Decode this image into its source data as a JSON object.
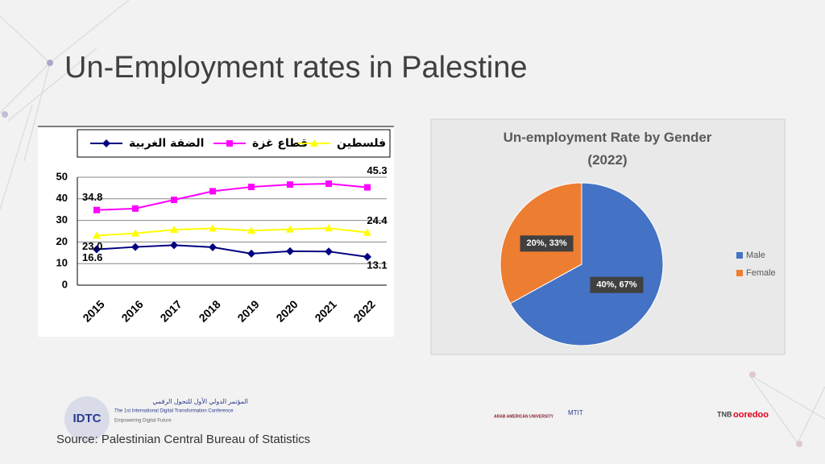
{
  "slide": {
    "title": "Un-Employment rates in Palestine",
    "source": "Source: Palestinian Central Bureau of Statistics"
  },
  "footer": {
    "logo": "IDTC",
    "conference_ar": "المؤتمر الدولي الأول للتحول الرقمي",
    "conference_en": "The 1st International Digital Transformation Conference",
    "tagline": "Empowering Digital Future",
    "sponsors": [
      "ARAB AMERICAN UNIVERSITY",
      "MTIT",
      "TNB",
      "ooredoo"
    ]
  },
  "chart_data": [
    {
      "type": "line",
      "categories": [
        "2015",
        "2016",
        "2017",
        "2018",
        "2019",
        "2020",
        "2021",
        "2022"
      ],
      "series": [
        {
          "name": "الضفة الغربية",
          "color": "#000080",
          "marker": "diamond",
          "values": [
            16.6,
            17.7,
            18.5,
            17.6,
            14.6,
            15.7,
            15.6,
            13.1
          ],
          "value_labels": [
            "16.6",
            null,
            null,
            null,
            null,
            null,
            null,
            "13.1"
          ]
        },
        {
          "name": "قطاع غزة",
          "color": "#ff00ff",
          "marker": "square",
          "values": [
            34.8,
            35.5,
            39.5,
            43.5,
            45.5,
            46.6,
            47.0,
            45.3
          ],
          "value_labels": [
            "34.8",
            null,
            null,
            null,
            null,
            null,
            null,
            "45.3"
          ]
        },
        {
          "name": "فلسطين",
          "color": "#ffff00",
          "marker": "triangle",
          "values": [
            23.0,
            24.0,
            25.7,
            26.3,
            25.3,
            25.9,
            26.4,
            24.4
          ],
          "value_labels": [
            "23.0",
            null,
            null,
            null,
            null,
            null,
            null,
            "24.4"
          ]
        }
      ],
      "ylim": [
        0,
        50
      ],
      "yticks": [
        0,
        10,
        20,
        30,
        40,
        50
      ],
      "grid": true,
      "legend": "top"
    },
    {
      "type": "pie",
      "title": "Un-employment Rate by Gender (2022)",
      "categories": [
        "Male",
        "Female"
      ],
      "values": [
        67,
        33
      ],
      "value_labels": [
        "40%, 67%",
        "20%, 33%"
      ],
      "colors": [
        "#4472c4",
        "#ed7d31"
      ],
      "legend": "right"
    }
  ]
}
